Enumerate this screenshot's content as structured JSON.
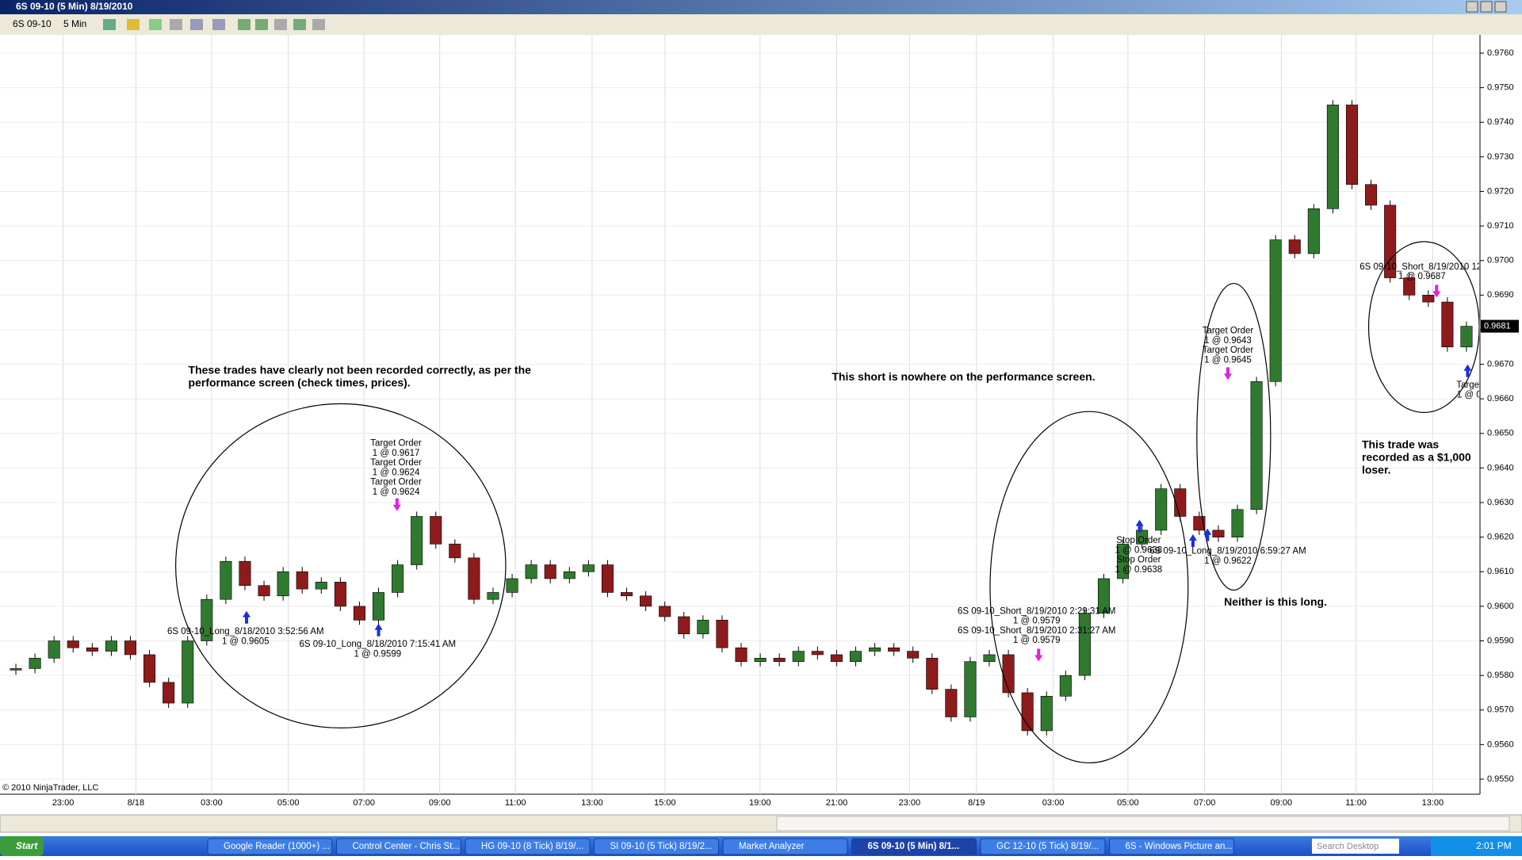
{
  "window": {
    "title": "6S 09-10 (5 Min)  8/19/2010",
    "toolbar": {
      "instrument": "6S 09-10",
      "interval": "5 Min"
    }
  },
  "chart_data": {
    "type": "candlestick",
    "close": [
      0.9582,
      0.9585,
      0.959,
      0.9588,
      0.9587,
      0.959,
      0.9586,
      0.9578,
      0.9572,
      0.959,
      0.9602,
      0.9613,
      0.9606,
      0.9603,
      0.961,
      0.9605,
      0.9607,
      0.96,
      0.9596,
      0.9604,
      0.9612,
      0.9626,
      0.9618,
      0.9614,
      0.9602,
      0.9604,
      0.9608,
      0.9612,
      0.9608,
      0.961,
      0.9612,
      0.9604,
      0.9603,
      0.96,
      0.9597,
      0.9592,
      0.9596,
      0.9588,
      0.9584,
      0.9585,
      0.9584,
      0.9587,
      0.9586,
      0.9584,
      0.9587,
      0.9588,
      0.9587,
      0.9585,
      0.9576,
      0.9568,
      0.9584,
      0.9586,
      0.9575,
      0.9564,
      0.9574,
      0.958,
      0.9598,
      0.9608,
      0.9618,
      0.9622,
      0.9634,
      0.9626,
      0.9622,
      0.962,
      0.9628,
      0.9665,
      0.9706,
      0.9702,
      0.9715,
      0.9745,
      0.9722,
      0.9716,
      0.9695,
      0.969,
      0.9688,
      0.9675,
      0.9681
    ],
    "up_color": "#2f7a2f",
    "down_color": "#8e1b1b",
    "grid": true,
    "ylim": [
      0.955,
      0.976
    ],
    "yticks": [
      {
        "value": 0.955,
        "label": "0.9550"
      },
      {
        "value": 0.956,
        "label": "0.9560"
      },
      {
        "value": 0.957,
        "label": "0.9570"
      },
      {
        "value": 0.958,
        "label": "0.9580"
      },
      {
        "value": 0.959,
        "label": "0.9590"
      },
      {
        "value": 0.96,
        "label": "0.9600"
      },
      {
        "value": 0.961,
        "label": "0.9610"
      },
      {
        "value": 0.962,
        "label": "0.9620"
      },
      {
        "value": 0.963,
        "label": "0.9630"
      },
      {
        "value": 0.964,
        "label": "0.9640"
      },
      {
        "value": 0.965,
        "label": "0.9650"
      },
      {
        "value": 0.966,
        "label": "0.9660"
      },
      {
        "value": 0.967,
        "label": "0.9670"
      },
      {
        "value": 0.968,
        "label": "0.9680"
      },
      {
        "value": 0.969,
        "label": "0.9690"
      },
      {
        "value": 0.97,
        "label": "0.9700"
      },
      {
        "value": 0.971,
        "label": "0.9710"
      },
      {
        "value": 0.972,
        "label": "0.9720"
      },
      {
        "value": 0.973,
        "label": "0.9730"
      },
      {
        "value": 0.974,
        "label": "0.9740"
      },
      {
        "value": 0.975,
        "label": "0.9750"
      },
      {
        "value": 0.976,
        "label": "0.9760"
      }
    ],
    "x_labels": [
      "23:00",
      "8/18",
      "03:00",
      "05:00",
      "07:00",
      "09:00",
      "11:00",
      "13:00",
      "15:00",
      "19:00",
      "21:00",
      "23:00",
      "8/19",
      "03:00",
      "05:00",
      "07:00",
      "09:00",
      "11:00",
      "13:00"
    ],
    "last_price": {
      "value": 0.9681,
      "label": "0.9681"
    },
    "copyright": "© 2010 NinjaTrader, LLC",
    "annotations": [
      {
        "lines": [
          "These trades have clearly not been recorded correctly, as per the",
          "performance screen (check times, prices)."
        ]
      },
      {
        "lines": [
          "This short is nowhere on the performance screen."
        ]
      },
      {
        "lines": [
          "Neither is this long."
        ]
      },
      {
        "lines": [
          "This trade was",
          "recorded as a $1,000",
          "loser."
        ]
      }
    ],
    "trade_labels": [
      {
        "lines": [
          "Target Order",
          "1 @ 0.9617",
          "Target Order",
          "1 @ 0.9624",
          "Target Order",
          "1 @ 0.9624"
        ]
      },
      {
        "lines": [
          "6S 09-10_Long_8/18/2010 3:52:56 AM",
          "1 @ 0.9605"
        ]
      },
      {
        "lines": [
          "6S 09-10_Long_8/18/2010 7:15:41 AM",
          "1 @ 0.9599"
        ]
      },
      {
        "lines": [
          "6S 09-10_Short_8/19/2010 2:29:31 AM",
          "1 @ 0.9579",
          "6S 09-10_Short_8/19/2010 2:31:27 AM",
          "1 @ 0.9579"
        ]
      },
      {
        "lines": [
          "Stop Order",
          "1 @ 0.9638",
          "Stop Order",
          "1 @ 0.9638"
        ]
      },
      {
        "lines": [
          "6S 09-10_Long_8/19/2010 6:59:27 AM",
          "1 @ 0.9622"
        ]
      },
      {
        "lines": [
          "Target Order",
          "1 @ 0.9643",
          "Target Order",
          "1 @ 0.9645"
        ]
      },
      {
        "lines": [
          "6S 09-10_Short_8/19/2010 12:",
          "1 @ 0.9687"
        ]
      },
      {
        "lines": [
          "Target Or",
          "1 @ 0.96"
        ]
      }
    ]
  },
  "taskbar": {
    "start": "Start",
    "items": [
      "Google Reader (1000+) ...",
      "Control Center - Chris St...",
      "HG 09-10 (8 Tick)  8/19/...",
      "SI 09-10 (5 Tick)  8/19/2...",
      "Market Analyzer",
      "6S 09-10 (5 Min)  8/1...",
      "GC 12-10 (5 Tick)  8/19/...",
      "6S - Windows Picture an..."
    ],
    "search": "Search Desktop",
    "clock": "2:01 PM"
  }
}
